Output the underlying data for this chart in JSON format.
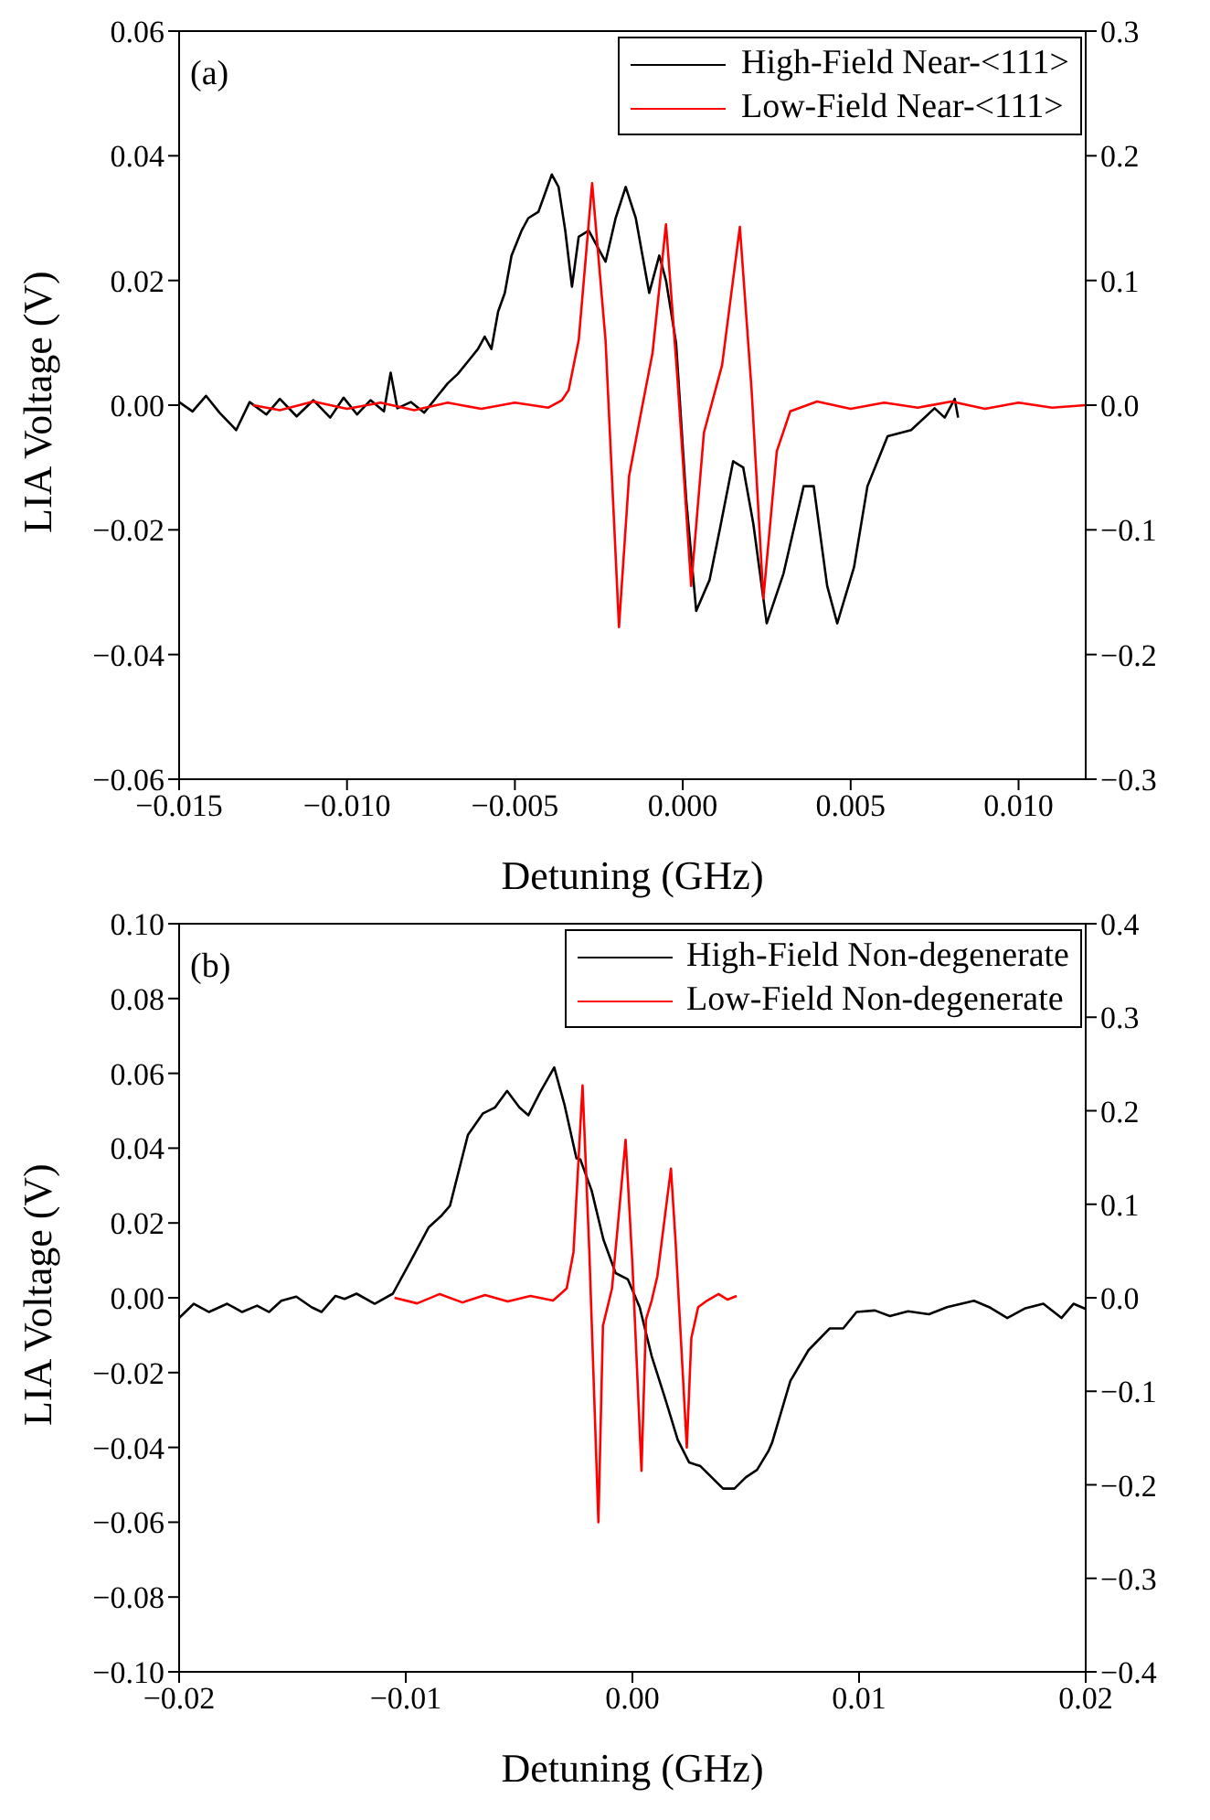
{
  "chart_data": [
    {
      "type": "line",
      "xlabel": "Detuning (GHz)",
      "ylabel": "LIA Voltage (V)",
      "annotations": [
        "(a)"
      ],
      "legend": "top right",
      "xlim": [
        -0.015,
        0.012
      ],
      "xticks": [
        {
          "value": -0.015,
          "label": "−0.015"
        },
        {
          "value": -0.01,
          "label": "−0.010"
        },
        {
          "value": -0.005,
          "label": "−0.005"
        },
        {
          "value": 0,
          "label": "0.000"
        },
        {
          "value": 0.005,
          "label": "0.005"
        },
        {
          "value": 0.01,
          "label": "0.010"
        }
      ],
      "ylim": [
        -0.06,
        0.06
      ],
      "yticks": [
        {
          "value": -0.06,
          "label": "−0.06"
        },
        {
          "value": -0.04,
          "label": "−0.04"
        },
        {
          "value": -0.02,
          "label": "−0.02"
        },
        {
          "value": 0,
          "label": "0.00"
        },
        {
          "value": 0.02,
          "label": "0.02"
        },
        {
          "value": 0.04,
          "label": "0.04"
        },
        {
          "value": 0.06,
          "label": "0.06"
        }
      ],
      "y2lim": [
        -0.3,
        0.3
      ],
      "y2ticks": [
        {
          "value": -0.3,
          "label": "−0.3"
        },
        {
          "value": -0.2,
          "label": "−0.2"
        },
        {
          "value": -0.1,
          "label": "−0.1"
        },
        {
          "value": 0,
          "label": "0.0"
        },
        {
          "value": 0.1,
          "label": "0.1"
        },
        {
          "value": 0.2,
          "label": "0.2"
        },
        {
          "value": 0.3,
          "label": "0.3"
        }
      ],
      "series": [
        {
          "name": "High-Field Near-<111>",
          "color": "#000000",
          "x": [
            -0.015,
            -0.0146,
            -0.0142,
            -0.0138,
            -0.0133,
            -0.0129,
            -0.0124,
            -0.012,
            -0.0115,
            -0.011,
            -0.0105,
            -0.0101,
            -0.0097,
            -0.0093,
            -0.0089,
            -0.0087,
            -0.0085,
            -0.0081,
            -0.0077,
            -0.0073,
            -0.007,
            -0.0067,
            -0.0064,
            -0.0061,
            -0.0059,
            -0.0057,
            -0.0055,
            -0.0053,
            -0.0051,
            -0.0048,
            -0.0046,
            -0.0043,
            -0.0041,
            -0.0039,
            -0.0037,
            -0.0035,
            -0.0033,
            -0.0031,
            -0.0028,
            -0.0026,
            -0.0023,
            -0.002,
            -0.0017,
            -0.0014,
            -0.0012,
            -0.001,
            -0.0007,
            -0.0005,
            -0.0002,
            0.0001,
            0.0004,
            0.0008,
            0.0011,
            0.0015,
            0.0018,
            0.0021,
            0.0025,
            0.003,
            0.0036,
            0.0039,
            0.0043,
            0.0046,
            0.0051,
            0.0055,
            0.0061,
            0.0068,
            0.0075,
            0.0078,
            0.0081,
            0.0082
          ],
          "values": [
            0.0005,
            -0.001,
            0.0015,
            -0.0012,
            -0.004,
            0.0005,
            -0.0015,
            0.001,
            -0.0018,
            0.0008,
            -0.002,
            0.0012,
            -0.0015,
            0.0008,
            -0.001,
            0.0052,
            -0.0005,
            0.0005,
            -0.0012,
            0.0015,
            0.0035,
            0.005,
            0.007,
            0.009,
            0.011,
            0.009,
            0.015,
            0.018,
            0.024,
            0.028,
            0.03,
            0.031,
            0.034,
            0.037,
            0.035,
            0.028,
            0.019,
            0.027,
            0.028,
            0.026,
            0.023,
            0.03,
            0.035,
            0.03,
            0.024,
            0.018,
            0.024,
            0.02,
            0.01,
            -0.015,
            -0.033,
            -0.028,
            -0.02,
            -0.009,
            -0.01,
            -0.019,
            -0.035,
            -0.027,
            -0.013,
            -0.013,
            -0.029,
            -0.035,
            -0.026,
            -0.013,
            -0.005,
            -0.004,
            -0.0005,
            -0.002,
            0.001,
            -0.002
          ]
        },
        {
          "name": "Low-Field Near-<111>",
          "color": "#ff0000",
          "axis": "y2",
          "x": [
            -0.0128,
            -0.012,
            -0.011,
            -0.01,
            -0.009,
            -0.008,
            -0.007,
            -0.006,
            -0.005,
            -0.004,
            -0.0036,
            -0.0034,
            -0.0031,
            -0.0027,
            -0.0023,
            -0.0019,
            -0.0016,
            -0.00125,
            -0.0009,
            -0.0005,
            -0.00016,
            0.00025,
            0.00063,
            0.00117,
            0.0017,
            0.00205,
            0.0024,
            0.0028,
            0.0032,
            0.004,
            0.005,
            0.006,
            0.007,
            0.008,
            0.009,
            0.01,
            0.011,
            0.012
          ],
          "values": [
            0,
            -0.004,
            0.003,
            -0.003,
            0.002,
            -0.004,
            0.002,
            -0.003,
            0.002,
            -0.002,
            0.004,
            0.012,
            0.052,
            0.178,
            0.052,
            -0.178,
            -0.057,
            -0.007,
            0.042,
            0.145,
            0.022,
            -0.145,
            -0.022,
            0.032,
            0.143,
            0.012,
            -0.155,
            -0.037,
            -0.005,
            0.003,
            -0.003,
            0.002,
            -0.002,
            0.003,
            -0.003,
            0.002,
            -0.002,
            0
          ]
        }
      ]
    },
    {
      "type": "line",
      "xlabel": "Detuning (GHz)",
      "ylabel": "LIA Voltage (V)",
      "annotations": [
        "(b)"
      ],
      "legend": "top right",
      "xlim": [
        -0.02,
        0.02
      ],
      "xticks": [
        {
          "value": -0.02,
          "label": "−0.02"
        },
        {
          "value": -0.01,
          "label": "−0.01"
        },
        {
          "value": 0,
          "label": "0.00"
        },
        {
          "value": 0.01,
          "label": "0.01"
        },
        {
          "value": 0.02,
          "label": "0.02"
        }
      ],
      "ylim": [
        -0.1,
        0.1
      ],
      "yticks": [
        {
          "value": -0.1,
          "label": "−0.10"
        },
        {
          "value": -0.08,
          "label": "−0.08"
        },
        {
          "value": -0.06,
          "label": "−0.06"
        },
        {
          "value": -0.04,
          "label": "−0.04"
        },
        {
          "value": -0.02,
          "label": "−0.02"
        },
        {
          "value": 0,
          "label": "0.00"
        },
        {
          "value": 0.02,
          "label": "0.02"
        },
        {
          "value": 0.04,
          "label": "0.04"
        },
        {
          "value": 0.06,
          "label": "0.06"
        },
        {
          "value": 0.08,
          "label": "0.08"
        },
        {
          "value": 0.1,
          "label": "0.10"
        }
      ],
      "y2lim": [
        -0.4,
        0.4
      ],
      "y2ticks": [
        {
          "value": -0.4,
          "label": "−0.4"
        },
        {
          "value": -0.3,
          "label": "−0.3"
        },
        {
          "value": -0.2,
          "label": "−0.2"
        },
        {
          "value": -0.1,
          "label": "−0.1"
        },
        {
          "value": 0,
          "label": "0.0"
        },
        {
          "value": 0.1,
          "label": "0.1"
        },
        {
          "value": 0.2,
          "label": "0.2"
        },
        {
          "value": 0.3,
          "label": "0.3"
        },
        {
          "value": 0.4,
          "label": "0.4"
        }
      ],
      "series": [
        {
          "name": "High-Field Non-degenerate",
          "color": "#000000",
          "x": [
            -0.02,
            -0.01935,
            -0.01868,
            -0.01788,
            -0.01722,
            -0.01656,
            -0.01603,
            -0.01549,
            -0.01483,
            -0.01416,
            -0.01372,
            -0.0131,
            -0.0127,
            -0.01217,
            -0.01137,
            -0.01057,
            -0.00978,
            -0.00898,
            -0.00845,
            -0.00805,
            -0.00726,
            -0.00659,
            -0.00606,
            -0.00553,
            -0.00499,
            -0.00459,
            -0.00407,
            -0.00345,
            -0.003,
            -0.00247,
            -0.0023,
            -0.0018,
            -0.00128,
            -0.00074,
            -0.0002,
            0.00032,
            0.00085,
            0.0015,
            0.002,
            0.0025,
            0.003,
            0.0035,
            0.004,
            0.0045,
            0.005,
            0.0055,
            0.006,
            0.00617,
            0.00697,
            0.00777,
            0.0087,
            0.0093,
            0.00989,
            0.0107,
            0.01136,
            0.01216,
            0.01308,
            0.01388,
            0.01507,
            0.01574,
            0.01654,
            0.01734,
            0.01813,
            0.01893,
            0.01946,
            0.02
          ],
          "values": [
            -0.0054,
            -0.0016,
            -0.0038,
            -0.0016,
            -0.0038,
            -0.0021,
            -0.0038,
            -0.0008,
            0.0003,
            -0.0025,
            -0.0038,
            0.0005,
            -0.0003,
            0.0011,
            -0.0016,
            0.0011,
            0.0099,
            0.0189,
            0.0218,
            0.0246,
            0.0435,
            0.0493,
            0.0509,
            0.0553,
            0.0509,
            0.0488,
            0.055,
            0.0616,
            0.0517,
            0.0373,
            0.037,
            0.0287,
            0.0156,
            0.0066,
            0.0049,
            -0.0025,
            -0.0156,
            -0.028,
            -0.038,
            -0.044,
            -0.045,
            -0.048,
            -0.051,
            -0.051,
            -0.048,
            -0.046,
            -0.041,
            -0.0386,
            -0.0222,
            -0.014,
            -0.0082,
            -0.0082,
            -0.0038,
            -0.0034,
            -0.0049,
            -0.0036,
            -0.0044,
            -0.0025,
            -0.0008,
            -0.0025,
            -0.0054,
            -0.0028,
            -0.0016,
            -0.0054,
            -0.0016,
            -0.003
          ]
        },
        {
          "name": "Low-Field Non-degenerate",
          "color": "#ff0000",
          "axis": "y2",
          "x": [
            -0.0105,
            -0.0095,
            -0.0085,
            -0.0075,
            -0.0065,
            -0.0055,
            -0.0045,
            -0.0035,
            -0.0029,
            -0.0026,
            -0.0022,
            -0.0019,
            -0.0015,
            -0.0013,
            -0.0009,
            -0.0006,
            -0.0003,
            0,
            0.0004,
            0.0006,
            0.00085,
            0.0011,
            0.0017,
            0.0019,
            0.0024,
            0.0026,
            0.0029,
            0.0033,
            0.0038,
            0.0042,
            0.0046
          ],
          "values": [
            0,
            -0.006,
            0.004,
            -0.005,
            0.003,
            -0.004,
            0.002,
            -0.003,
            0.01,
            0.049,
            0.227,
            0.049,
            -0.24,
            -0.03,
            0.01,
            0.089,
            0.169,
            0.036,
            -0.185,
            -0.023,
            -0.003,
            0.023,
            0.138,
            0.062,
            -0.16,
            -0.043,
            -0.01,
            -0.003,
            0.004,
            -0.002,
            0.002
          ]
        }
      ]
    }
  ]
}
